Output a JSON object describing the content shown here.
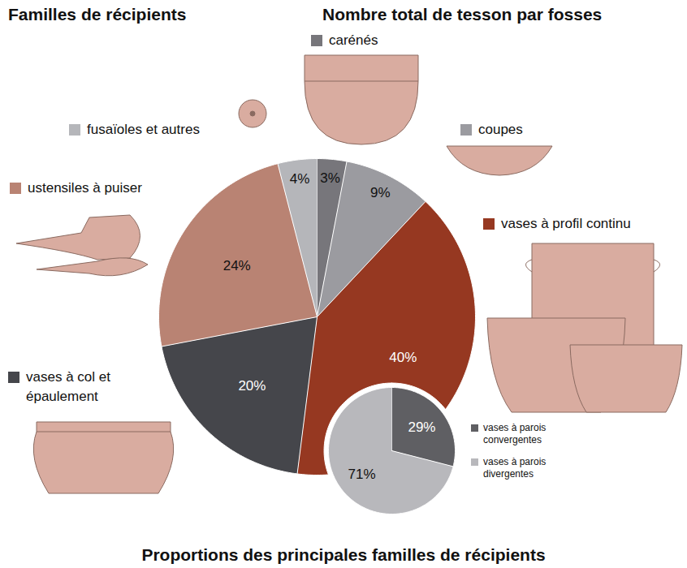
{
  "chart_data": [
    {
      "type": "pie",
      "title": "Proportions des principales familles de récipients",
      "subtitle": "Familles de récipients",
      "annotations": [
        "Nombre total de tesson par fosses"
      ],
      "categories": [
        "carénés",
        "coupes",
        "vases à profil continu",
        "vases à col et épaulement",
        "ustensiles à puiser",
        "fusaïoles et autres"
      ],
      "values": [
        3,
        9,
        40,
        20,
        24,
        4
      ],
      "value_labels": [
        "3%",
        "9%",
        "40%",
        "20%",
        "24%",
        "4%"
      ],
      "colors": [
        "#77767b",
        "#9b9ba0",
        "#963821",
        "#45464b",
        "#b98373",
        "#b5b6ba"
      ],
      "data_labels": true
    },
    {
      "type": "pie",
      "categories": [
        "vases à parois convergentes",
        "vases à parois divergentes"
      ],
      "values": [
        29,
        71
      ],
      "value_labels": [
        "29%",
        "71%"
      ],
      "colors": [
        "#5f5f63",
        "#b8b8bc"
      ],
      "data_labels": true,
      "legend": "right"
    }
  ]
}
